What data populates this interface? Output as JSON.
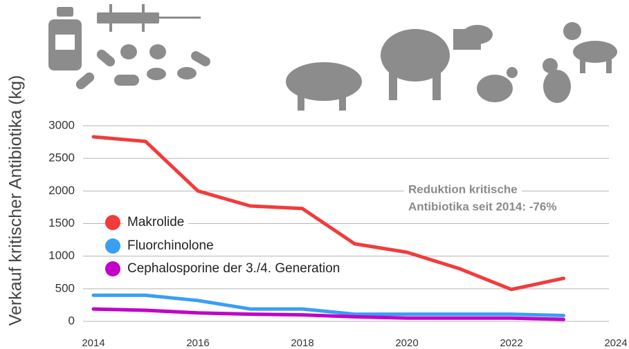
{
  "chart_data": {
    "type": "line",
    "y_label": "Verkauf kritischer Antibiotika (kg)",
    "annotation": [
      "Reduktion kritische",
      "Antibiotika seit 2014: -76%"
    ],
    "x": [
      2014,
      2015,
      2016,
      2017,
      2018,
      2019,
      2020,
      2021,
      2022,
      2023
    ],
    "series": [
      {
        "name": "Makrolide",
        "color": "#f23b3b",
        "values": [
          2830,
          2760,
          2000,
          1770,
          1730,
          1190,
          1060,
          810,
          490,
          660
        ]
      },
      {
        "name": "Fluorchinolone",
        "color": "#3a9ef5",
        "values": [
          400,
          400,
          320,
          190,
          190,
          110,
          110,
          110,
          110,
          90
        ]
      },
      {
        "name": "Cephalosporine der 3./4. Generation",
        "color": "#c200c8",
        "values": [
          190,
          170,
          130,
          110,
          100,
          70,
          50,
          50,
          50,
          30
        ]
      }
    ],
    "xlim": [
      2014,
      2024
    ],
    "xticks": [
      2014,
      2016,
      2018,
      2020,
      2022,
      2024
    ],
    "ylim": [
      0,
      3000
    ],
    "yticks": [
      0,
      500,
      1000,
      1500,
      2000,
      2500,
      3000
    ],
    "grid": true
  }
}
